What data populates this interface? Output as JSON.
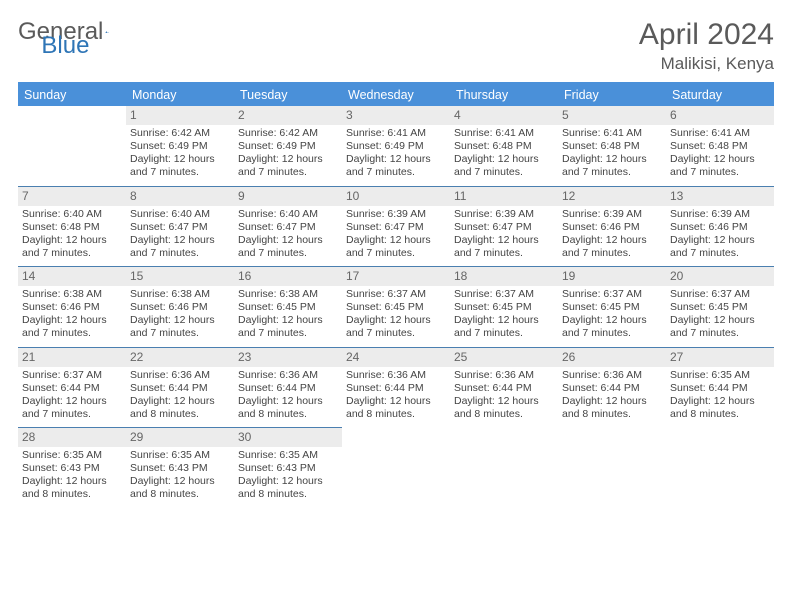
{
  "logo": {
    "text_general": "General",
    "text_blue": "Blue"
  },
  "title": "April 2024",
  "location": "Malikisi, Kenya",
  "colors": {
    "header_bg": "#4a90d9",
    "header_text": "#ffffff",
    "daynum_bg": "#ececec",
    "border": "#4a7fb0",
    "text": "#444444",
    "title_color": "#5a5a5a"
  },
  "weekdays": [
    "Sunday",
    "Monday",
    "Tuesday",
    "Wednesday",
    "Thursday",
    "Friday",
    "Saturday"
  ],
  "weeks": [
    [
      null,
      {
        "n": "1",
        "sunrise": "6:42 AM",
        "sunset": "6:49 PM",
        "dl": "12 hours and 7 minutes."
      },
      {
        "n": "2",
        "sunrise": "6:42 AM",
        "sunset": "6:49 PM",
        "dl": "12 hours and 7 minutes."
      },
      {
        "n": "3",
        "sunrise": "6:41 AM",
        "sunset": "6:49 PM",
        "dl": "12 hours and 7 minutes."
      },
      {
        "n": "4",
        "sunrise": "6:41 AM",
        "sunset": "6:48 PM",
        "dl": "12 hours and 7 minutes."
      },
      {
        "n": "5",
        "sunrise": "6:41 AM",
        "sunset": "6:48 PM",
        "dl": "12 hours and 7 minutes."
      },
      {
        "n": "6",
        "sunrise": "6:41 AM",
        "sunset": "6:48 PM",
        "dl": "12 hours and 7 minutes."
      }
    ],
    [
      {
        "n": "7",
        "sunrise": "6:40 AM",
        "sunset": "6:48 PM",
        "dl": "12 hours and 7 minutes."
      },
      {
        "n": "8",
        "sunrise": "6:40 AM",
        "sunset": "6:47 PM",
        "dl": "12 hours and 7 minutes."
      },
      {
        "n": "9",
        "sunrise": "6:40 AM",
        "sunset": "6:47 PM",
        "dl": "12 hours and 7 minutes."
      },
      {
        "n": "10",
        "sunrise": "6:39 AM",
        "sunset": "6:47 PM",
        "dl": "12 hours and 7 minutes."
      },
      {
        "n": "11",
        "sunrise": "6:39 AM",
        "sunset": "6:47 PM",
        "dl": "12 hours and 7 minutes."
      },
      {
        "n": "12",
        "sunrise": "6:39 AM",
        "sunset": "6:46 PM",
        "dl": "12 hours and 7 minutes."
      },
      {
        "n": "13",
        "sunrise": "6:39 AM",
        "sunset": "6:46 PM",
        "dl": "12 hours and 7 minutes."
      }
    ],
    [
      {
        "n": "14",
        "sunrise": "6:38 AM",
        "sunset": "6:46 PM",
        "dl": "12 hours and 7 minutes."
      },
      {
        "n": "15",
        "sunrise": "6:38 AM",
        "sunset": "6:46 PM",
        "dl": "12 hours and 7 minutes."
      },
      {
        "n": "16",
        "sunrise": "6:38 AM",
        "sunset": "6:45 PM",
        "dl": "12 hours and 7 minutes."
      },
      {
        "n": "17",
        "sunrise": "6:37 AM",
        "sunset": "6:45 PM",
        "dl": "12 hours and 7 minutes."
      },
      {
        "n": "18",
        "sunrise": "6:37 AM",
        "sunset": "6:45 PM",
        "dl": "12 hours and 7 minutes."
      },
      {
        "n": "19",
        "sunrise": "6:37 AM",
        "sunset": "6:45 PM",
        "dl": "12 hours and 7 minutes."
      },
      {
        "n": "20",
        "sunrise": "6:37 AM",
        "sunset": "6:45 PM",
        "dl": "12 hours and 7 minutes."
      }
    ],
    [
      {
        "n": "21",
        "sunrise": "6:37 AM",
        "sunset": "6:44 PM",
        "dl": "12 hours and 7 minutes."
      },
      {
        "n": "22",
        "sunrise": "6:36 AM",
        "sunset": "6:44 PM",
        "dl": "12 hours and 8 minutes."
      },
      {
        "n": "23",
        "sunrise": "6:36 AM",
        "sunset": "6:44 PM",
        "dl": "12 hours and 8 minutes."
      },
      {
        "n": "24",
        "sunrise": "6:36 AM",
        "sunset": "6:44 PM",
        "dl": "12 hours and 8 minutes."
      },
      {
        "n": "25",
        "sunrise": "6:36 AM",
        "sunset": "6:44 PM",
        "dl": "12 hours and 8 minutes."
      },
      {
        "n": "26",
        "sunrise": "6:36 AM",
        "sunset": "6:44 PM",
        "dl": "12 hours and 8 minutes."
      },
      {
        "n": "27",
        "sunrise": "6:35 AM",
        "sunset": "6:44 PM",
        "dl": "12 hours and 8 minutes."
      }
    ],
    [
      {
        "n": "28",
        "sunrise": "6:35 AM",
        "sunset": "6:43 PM",
        "dl": "12 hours and 8 minutes."
      },
      {
        "n": "29",
        "sunrise": "6:35 AM",
        "sunset": "6:43 PM",
        "dl": "12 hours and 8 minutes."
      },
      {
        "n": "30",
        "sunrise": "6:35 AM",
        "sunset": "6:43 PM",
        "dl": "12 hours and 8 minutes."
      },
      null,
      null,
      null,
      null
    ]
  ],
  "labels": {
    "sunrise": "Sunrise:",
    "sunset": "Sunset:",
    "daylight": "Daylight:"
  }
}
